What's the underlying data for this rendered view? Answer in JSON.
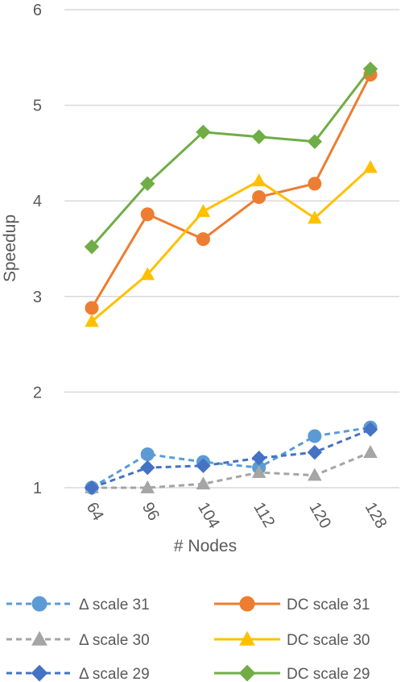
{
  "chart_data": {
    "type": "line",
    "categories": [
      "64",
      "96",
      "104",
      "112",
      "120",
      "128"
    ],
    "xlabel": "# Nodes",
    "ylabel": "Speedup",
    "ylim": [
      1,
      6
    ],
    "yticks": [
      "1",
      "2",
      "3",
      "4",
      "5",
      "6"
    ],
    "grid": "horizontal",
    "legend_position": "bottom",
    "series": [
      {
        "name": "Δ scale 31",
        "values": [
          1.0,
          1.35,
          1.27,
          1.21,
          1.54,
          1.63
        ],
        "color": "#5B9BD5",
        "marker": "circle",
        "dashed": true
      },
      {
        "name": "DC scale 31",
        "values": [
          2.88,
          3.86,
          3.6,
          4.04,
          4.18,
          5.32
        ],
        "color": "#ED7D31",
        "marker": "circle",
        "dashed": false
      },
      {
        "name": "Δ scale 30",
        "values": [
          1.0,
          1.0,
          1.04,
          1.16,
          1.13,
          1.37
        ],
        "color": "#A5A5A5",
        "marker": "triangle",
        "dashed": true
      },
      {
        "name": "DC scale 30",
        "values": [
          2.74,
          3.23,
          3.89,
          4.21,
          3.82,
          4.35
        ],
        "color": "#FFC000",
        "marker": "triangle",
        "dashed": false
      },
      {
        "name": "Δ scale 29",
        "values": [
          1.0,
          1.21,
          1.23,
          1.31,
          1.37,
          1.61
        ],
        "color": "#4472C4",
        "marker": "diamond",
        "dashed": true
      },
      {
        "name": "DC scale 29",
        "values": [
          3.52,
          4.18,
          4.72,
          4.67,
          4.62,
          5.38
        ],
        "color": "#70AD47",
        "marker": "diamond",
        "dashed": false
      }
    ]
  }
}
